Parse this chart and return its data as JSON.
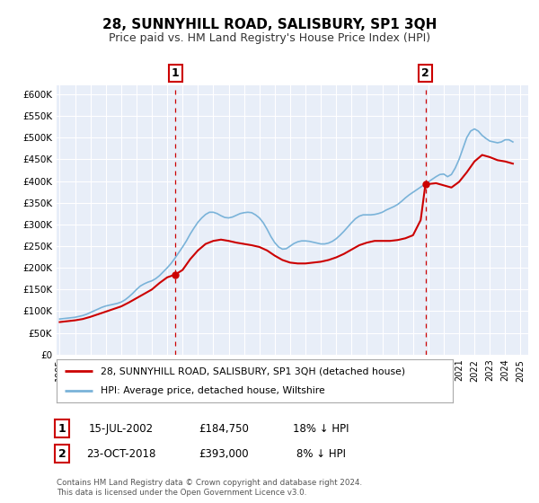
{
  "title": "28, SUNNYHILL ROAD, SALISBURY, SP1 3QH",
  "subtitle": "Price paid vs. HM Land Registry's House Price Index (HPI)",
  "background_color": "#ffffff",
  "plot_bg_color": "#e8eef8",
  "grid_color": "#ffffff",
  "hpi_color": "#7ab3d9",
  "price_color": "#cc0000",
  "ylim": [
    0,
    620000
  ],
  "yticks": [
    0,
    50000,
    100000,
    150000,
    200000,
    250000,
    300000,
    350000,
    400000,
    450000,
    500000,
    550000,
    600000
  ],
  "ytick_labels": [
    "£0",
    "£50K",
    "£100K",
    "£150K",
    "£200K",
    "£250K",
    "£300K",
    "£350K",
    "£400K",
    "£450K",
    "£500K",
    "£550K",
    "£600K"
  ],
  "transaction1_date": "15-JUL-2002",
  "transaction1_price": 184750,
  "transaction1_x": 2002.54,
  "transaction1_y": 184750,
  "transaction1_label": "18% ↓ HPI",
  "transaction2_date": "23-OCT-2018",
  "transaction2_price": 393000,
  "transaction2_x": 2018.81,
  "transaction2_y": 393000,
  "transaction2_label": "8% ↓ HPI",
  "legend_label1": "28, SUNNYHILL ROAD, SALISBURY, SP1 3QH (detached house)",
  "legend_label2": "HPI: Average price, detached house, Wiltshire",
  "footnote": "Contains HM Land Registry data © Crown copyright and database right 2024.\nThis data is licensed under the Open Government Licence v3.0.",
  "xmin": 1994.8,
  "xmax": 2025.5,
  "hpi_data_x": [
    1995.0,
    1995.25,
    1995.5,
    1995.75,
    1996.0,
    1996.25,
    1996.5,
    1996.75,
    1997.0,
    1997.25,
    1997.5,
    1997.75,
    1998.0,
    1998.25,
    1998.5,
    1998.75,
    1999.0,
    1999.25,
    1999.5,
    1999.75,
    2000.0,
    2000.25,
    2000.5,
    2000.75,
    2001.0,
    2001.25,
    2001.5,
    2001.75,
    2002.0,
    2002.25,
    2002.5,
    2002.75,
    2003.0,
    2003.25,
    2003.5,
    2003.75,
    2004.0,
    2004.25,
    2004.5,
    2004.75,
    2005.0,
    2005.25,
    2005.5,
    2005.75,
    2006.0,
    2006.25,
    2006.5,
    2006.75,
    2007.0,
    2007.25,
    2007.5,
    2007.75,
    2008.0,
    2008.25,
    2008.5,
    2008.75,
    2009.0,
    2009.25,
    2009.5,
    2009.75,
    2010.0,
    2010.25,
    2010.5,
    2010.75,
    2011.0,
    2011.25,
    2011.5,
    2011.75,
    2012.0,
    2012.25,
    2012.5,
    2012.75,
    2013.0,
    2013.25,
    2013.5,
    2013.75,
    2014.0,
    2014.25,
    2014.5,
    2014.75,
    2015.0,
    2015.25,
    2015.5,
    2015.75,
    2016.0,
    2016.25,
    2016.5,
    2016.75,
    2017.0,
    2017.25,
    2017.5,
    2017.75,
    2018.0,
    2018.25,
    2018.5,
    2018.75,
    2019.0,
    2019.25,
    2019.5,
    2019.75,
    2020.0,
    2020.25,
    2020.5,
    2020.75,
    2021.0,
    2021.25,
    2021.5,
    2021.75,
    2022.0,
    2022.25,
    2022.5,
    2022.75,
    2023.0,
    2023.25,
    2023.5,
    2023.75,
    2024.0,
    2024.25,
    2024.5
  ],
  "hpi_data_y": [
    82000,
    83000,
    84000,
    85000,
    86000,
    88000,
    90000,
    93000,
    97000,
    101000,
    105000,
    109000,
    112000,
    114000,
    116000,
    118000,
    121000,
    126000,
    133000,
    141000,
    150000,
    158000,
    163000,
    167000,
    170000,
    175000,
    182000,
    191000,
    200000,
    210000,
    222000,
    235000,
    248000,
    262000,
    278000,
    292000,
    305000,
    315000,
    323000,
    328000,
    328000,
    325000,
    320000,
    316000,
    315000,
    317000,
    321000,
    325000,
    327000,
    328000,
    327000,
    322000,
    315000,
    304000,
    289000,
    272000,
    258000,
    248000,
    243000,
    244000,
    250000,
    256000,
    260000,
    262000,
    262000,
    261000,
    259000,
    257000,
    255000,
    255000,
    257000,
    261000,
    267000,
    275000,
    284000,
    294000,
    304000,
    313000,
    319000,
    322000,
    322000,
    322000,
    323000,
    325000,
    328000,
    333000,
    337000,
    341000,
    346000,
    353000,
    361000,
    368000,
    374000,
    380000,
    386000,
    392000,
    398000,
    404000,
    410000,
    415000,
    416000,
    410000,
    415000,
    430000,
    450000,
    475000,
    500000,
    515000,
    520000,
    515000,
    505000,
    498000,
    492000,
    490000,
    488000,
    490000,
    495000,
    495000,
    490000
  ],
  "price_data_x": [
    1995.0,
    1995.5,
    1996.0,
    1996.5,
    1997.0,
    1997.5,
    1998.0,
    1998.5,
    1999.0,
    1999.5,
    2000.0,
    2000.5,
    2001.0,
    2001.5,
    2002.0,
    2002.54,
    2003.0,
    2003.5,
    2004.0,
    2004.5,
    2005.0,
    2005.5,
    2006.0,
    2006.5,
    2007.0,
    2007.5,
    2008.0,
    2008.5,
    2009.0,
    2009.5,
    2010.0,
    2010.5,
    2011.0,
    2011.5,
    2012.0,
    2012.5,
    2013.0,
    2013.5,
    2014.0,
    2014.5,
    2015.0,
    2015.5,
    2016.0,
    2016.5,
    2017.0,
    2017.5,
    2018.0,
    2018.5,
    2018.81,
    2019.0,
    2019.5,
    2020.0,
    2020.5,
    2021.0,
    2021.5,
    2022.0,
    2022.5,
    2023.0,
    2023.5,
    2024.0,
    2024.5
  ],
  "price_data_y": [
    75000,
    77000,
    79000,
    82000,
    87000,
    93000,
    99000,
    105000,
    111000,
    120000,
    130000,
    140000,
    150000,
    165000,
    178000,
    184750,
    195000,
    220000,
    240000,
    255000,
    262000,
    265000,
    262000,
    258000,
    255000,
    252000,
    248000,
    240000,
    228000,
    218000,
    212000,
    210000,
    210000,
    212000,
    214000,
    218000,
    224000,
    232000,
    242000,
    252000,
    258000,
    262000,
    262000,
    262000,
    264000,
    268000,
    275000,
    310000,
    393000,
    393000,
    395000,
    390000,
    385000,
    398000,
    420000,
    445000,
    460000,
    455000,
    448000,
    445000,
    440000
  ]
}
